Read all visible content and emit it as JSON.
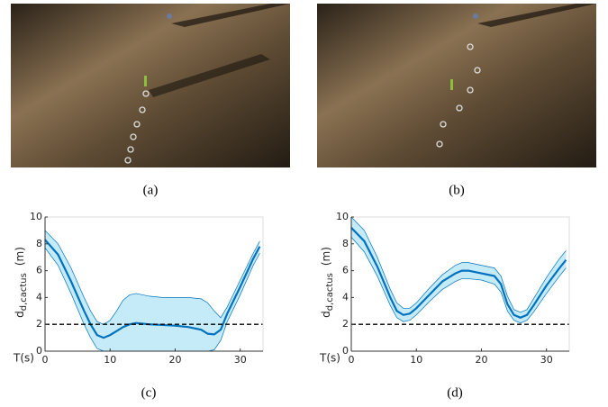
{
  "images": [
    {
      "caption": "(a)"
    },
    {
      "caption": "(b)"
    }
  ],
  "chart_data": [
    {
      "type": "line",
      "caption": "(c)",
      "ylabel": "d",
      "ylabel_sub": "d,cactus",
      "ylabel_unit": "(m)",
      "xlabel": "T(s)",
      "x": [
        0,
        2,
        4,
        6,
        7,
        8,
        9,
        10,
        11,
        12,
        13,
        14,
        16,
        18,
        20,
        22,
        24,
        25,
        26,
        27,
        28,
        30,
        32,
        33
      ],
      "series": [
        {
          "color": "#0072bd",
          "values": [
            8.3,
            7.2,
            5.2,
            3.0,
            2.0,
            1.2,
            1.0,
            1.2,
            1.5,
            1.8,
            2.0,
            2.1,
            2.0,
            1.95,
            1.9,
            1.8,
            1.6,
            1.3,
            1.25,
            1.6,
            2.8,
            4.8,
            6.9,
            7.8
          ],
          "upper": [
            9.0,
            8.0,
            6.2,
            4.0,
            3.0,
            2.2,
            2.0,
            2.3,
            3.0,
            3.8,
            4.2,
            4.3,
            4.1,
            4.0,
            4.0,
            4.0,
            3.9,
            3.6,
            3.0,
            2.5,
            3.3,
            5.3,
            7.3,
            8.2
          ],
          "lower": [
            7.7,
            6.4,
            4.3,
            2.0,
            1.0,
            0.2,
            0,
            0,
            0,
            0,
            0,
            0,
            0,
            0,
            0,
            0,
            0,
            0,
            0.1,
            0.8,
            2.2,
            4.2,
            6.4,
            7.3
          ]
        }
      ],
      "band_color": "#c5eaf8",
      "hline": 2,
      "xlim": [
        0,
        33.5
      ],
      "ylim": [
        0,
        10
      ],
      "xticks": [
        0,
        10,
        20,
        30
      ],
      "yticks": [
        0,
        2,
        4,
        6,
        8,
        10
      ]
    },
    {
      "type": "line",
      "caption": "(d)",
      "ylabel": "d",
      "ylabel_sub": "d,cactus",
      "ylabel_unit": "(m)",
      "xlabel": "T(s)",
      "x": [
        0,
        2,
        4,
        6,
        7,
        8,
        9,
        10,
        12,
        14,
        16,
        17,
        18,
        20,
        22,
        23,
        24,
        25,
        26,
        27,
        28,
        30,
        32,
        33
      ],
      "series": [
        {
          "color": "#0072bd",
          "values": [
            9.2,
            8.2,
            6.3,
            4.0,
            3.0,
            2.7,
            2.8,
            3.2,
            4.2,
            5.2,
            5.8,
            6.0,
            6.0,
            5.8,
            5.6,
            5.0,
            3.5,
            2.7,
            2.5,
            2.7,
            3.4,
            4.9,
            6.2,
            6.8
          ],
          "upper": [
            10.0,
            9.0,
            7.0,
            4.6,
            3.6,
            3.2,
            3.2,
            3.6,
            4.7,
            5.7,
            6.4,
            6.6,
            6.6,
            6.4,
            6.2,
            5.6,
            4.1,
            3.1,
            2.9,
            3.1,
            3.9,
            5.5,
            6.9,
            7.5
          ],
          "lower": [
            8.5,
            7.4,
            5.6,
            3.4,
            2.5,
            2.2,
            2.3,
            2.7,
            3.7,
            4.6,
            5.2,
            5.4,
            5.4,
            5.3,
            5.0,
            4.4,
            3.0,
            2.3,
            2.1,
            2.3,
            2.9,
            4.3,
            5.6,
            6.2
          ]
        }
      ],
      "band_color": "#c5eaf8",
      "hline": 2,
      "xlim": [
        0,
        33.5
      ],
      "ylim": [
        0,
        10
      ],
      "xticks": [
        0,
        10,
        20,
        30
      ],
      "yticks": [
        0,
        2,
        4,
        6,
        8,
        10
      ]
    }
  ]
}
